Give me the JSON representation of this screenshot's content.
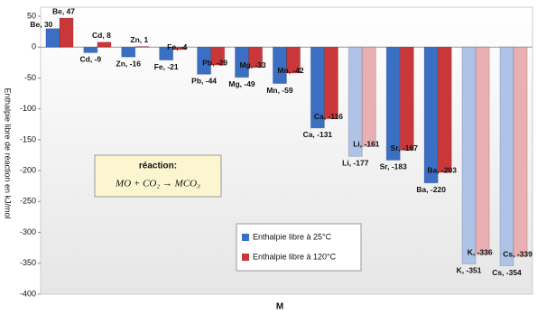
{
  "chart_data": {
    "type": "bar",
    "y_label": "Enthalpie libre de réaction en kJ/mol",
    "x_label": "M",
    "annotation_title": "réaction:",
    "annotation_formula": "MO + CO₂ → MCO₃",
    "ylim": [
      -400,
      50
    ],
    "yticks": [
      -400,
      -350,
      -300,
      -250,
      -200,
      -150,
      -100,
      -50,
      0,
      50
    ],
    "grid": false,
    "legend": "lower-center",
    "series": [
      {
        "name": "Enthalpie libre à 25°C",
        "color": "#3a6fc4",
        "colors": [
          "#3a6fc4",
          "#3a6fc4",
          "#3a6fc4",
          "#3a6fc4",
          "#3a6fc4",
          "#3a6fc4",
          "#3a6fc4",
          "#3a6fc4",
          "#aec3e6",
          "#3a6fc4",
          "#3a6fc4",
          "#aec3e6",
          "#aec3e6"
        ],
        "values": [
          30,
          -9,
          -16,
          -21,
          -44,
          -49,
          -59,
          -131,
          -177,
          -183,
          -220,
          -351,
          -354
        ],
        "value_labels": [
          "Be, 30",
          "Cd, -9",
          "Zn, -16",
          "Fe, -21",
          "Pb, -44",
          "Mg, -49",
          "Mn, -59",
          "Ca, -131",
          "Li, -177",
          "Sr, -183",
          "Ba, -220",
          "K, -351",
          "Cs, -354"
        ]
      },
      {
        "name": "Enthalpie libre à 120°C",
        "color": "#c9373a",
        "colors": [
          "#c9373a",
          "#c9373a",
          "#c9373a",
          "#c9373a",
          "#c9373a",
          "#c9373a",
          "#c9373a",
          "#c9373a",
          "#e8b0b2",
          "#c9373a",
          "#c9373a",
          "#e8b0b2",
          "#e8b0b2"
        ],
        "values": [
          47,
          8,
          1,
          -4,
          -29,
          -33,
          -42,
          -116,
          -161,
          -167,
          -203,
          -336,
          -339
        ],
        "value_labels": [
          "Be, 47",
          "Cd, 8",
          "Zn, 1",
          "Fe, -4",
          "Pb, -29",
          "Mg, -33",
          "Mn, -42",
          "Ca, -116",
          "Li, -161",
          "Sr, -167",
          "Ba, -203",
          "K, -336",
          "Cs, -339"
        ]
      }
    ]
  }
}
